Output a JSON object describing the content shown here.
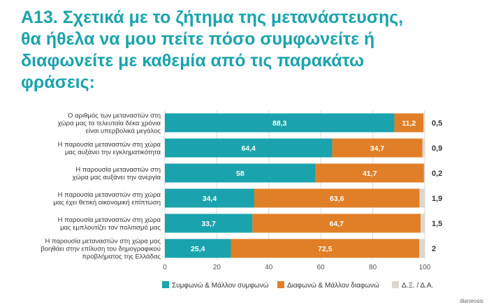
{
  "title_lines": [
    "Α13. Σχετικά με το ζήτημα της μετανάστευσης,",
    "θα ήθελα να μου πείτε πόσο συμφωνείτε ή",
    "διαφωνείτε με καθεμία από τις παρακάτω",
    "φράσεις:"
  ],
  "source": "dianeosis",
  "chart_data": {
    "type": "bar",
    "orientation": "horizontal",
    "stacked": true,
    "title": "Α13. Σχετικά με το ζήτημα της μετανάστευσης, θα ήθελα να μου πείτε πόσο συμφωνείτε ή διαφωνείτε με καθεμία από τις παρακάτω φράσεις:",
    "categories": [
      [
        "Ο αριθμός των μεταναστών στη",
        "χώρα μας τα τελευταία δέκα χρόνια",
        "είναι υπερβολικά μεγάλος"
      ],
      [
        "Η παρουσία μεταναστών στη χώρα",
        "μας αυξάνει την εγκληματικότητα"
      ],
      [
        "Η παρουσία μεταναστών στη",
        "χώρα μας αυξάνει την ανεργία"
      ],
      [
        "Η παρουσία μεταναστών στη χώρα",
        "μας έχει θετική οικονομική επίπτωση"
      ],
      [
        "Η παρουσία μεταναστών στη χώρα",
        "μας εμπλουτίζει τον πολιτισμό μας"
      ],
      [
        "Η παρουσία μεταναστών στη χώρα μας",
        "βοηθάει στην επίλυση του δημογραφικού",
        "προβλήματος της Ελλάδας"
      ]
    ],
    "series": [
      {
        "name": "Συμφωνώ & Μάλλον συμφωνώ",
        "color": "#1aa3ad",
        "values": [
          88.3,
          64.4,
          58,
          34.4,
          33.7,
          25.4
        ],
        "labels": [
          "88,3",
          "64,4",
          "58",
          "34,4",
          "33,7",
          "25,4"
        ]
      },
      {
        "name": "Διαφωνώ & Μάλλον διαφωνώ",
        "color": "#e07f27",
        "values": [
          11.2,
          34.7,
          41.7,
          63.6,
          64.7,
          72.5
        ],
        "labels": [
          "11,2",
          "34,7",
          "41,7",
          "63,6",
          "64,7",
          "72,5"
        ]
      },
      {
        "name": "Δ.Ξ. / Δ.Α.",
        "color": "#dcd6cf",
        "values": [
          0.5,
          0.9,
          0.2,
          1.9,
          1.5,
          2
        ],
        "labels": [
          "0,5",
          "0,9",
          "0,2",
          "1,9",
          "1,5",
          "2"
        ]
      }
    ],
    "x_ticks": [
      0,
      20,
      40,
      60,
      80,
      100
    ],
    "xlim": [
      0,
      100
    ],
    "grid": true,
    "legend_position": "bottom"
  }
}
